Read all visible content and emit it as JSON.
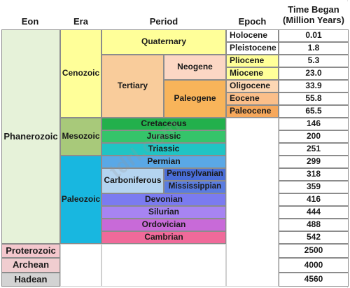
{
  "headers": {
    "eon": "Eon",
    "era": "Era",
    "period": "Period",
    "epoch": "Epoch",
    "time_line1": "Time Began",
    "time_line2": "(Million Years)"
  },
  "eons": {
    "phanerozoic": "Phanerozoic",
    "proterozoic": "Proterozoic",
    "archean": "Archean",
    "hadean": "Hadean"
  },
  "eras": {
    "cenozoic": "Cenozoic",
    "mesozoic": "Mesozoic",
    "paleozoic": "Paleozoic"
  },
  "periods": {
    "quaternary": "Quaternary",
    "tertiary": "Tertiary",
    "neogene": "Neogene",
    "paleogene": "Paleogene",
    "cretaceous": "Cretaceous",
    "jurassic": "Jurassic",
    "triassic": "Triassic",
    "permian": "Permian",
    "carboniferous": "Carboniferous",
    "pennsylvanian": "Pennsylvanian",
    "mississippian": "Mississippian",
    "devonian": "Devonian",
    "silurian": "Silurian",
    "ordovician": "Ordovician",
    "cambrian": "Cambrian"
  },
  "epochs": {
    "holocene": "Holocene",
    "pleistocene": "Pleistocene",
    "pliocene": "Pliocene",
    "miocene": "Miocene",
    "oligocene": "Oligocene",
    "eocene": "Eocene",
    "paleocene": "Paleocene"
  },
  "times": {
    "holocene": "0.01",
    "pleistocene": "1.8",
    "pliocene": "5.3",
    "miocene": "23.0",
    "oligocene": "33.9",
    "eocene": "55.8",
    "paleocene": "65.5",
    "cretaceous": "146",
    "jurassic": "200",
    "triassic": "251",
    "permian": "299",
    "pennsylvanian": "318",
    "mississippian": "359",
    "devonian": "416",
    "silurian": "444",
    "ordovician": "488",
    "cambrian": "542",
    "proterozoic": "2500",
    "archean": "4000",
    "hadean": "4560"
  },
  "watermark": "tdrl.com",
  "colors": {
    "phanerozoic": "#e6f2d9",
    "proterozoic": "#f4c7cd",
    "archean": "#f0cdd0",
    "hadean": "#d3d3d3",
    "cenozoic": "#ffff99",
    "quaternary": "#ffff99",
    "tertiary": "#f9cc9b",
    "neogene": "#fcd7c4",
    "paleogene": "#f8b45a",
    "holocene": "#ffffff",
    "pleistocene": "#ffffff",
    "pliocene": "#ffff99",
    "miocene": "#ffff99",
    "oligocene": "#fcd7b4",
    "eocene": "#fbbf8a",
    "paleocene": "#f6a85c",
    "mesozoic": "#a8c97a",
    "cretaceous": "#22b04c",
    "jurassic": "#35c46a",
    "triassic": "#20c4c4",
    "paleozoic": "#18b7e0",
    "permian": "#5aa8e6",
    "carboniferous": "#b4d4f0",
    "pennsylvanian": "#4a6ed8",
    "mississippian": "#5a7ce0",
    "devonian": "#7b7bf0",
    "silurian": "#a784f2",
    "ordovician": "#c86ad8",
    "cambrian": "#f06a9a"
  }
}
